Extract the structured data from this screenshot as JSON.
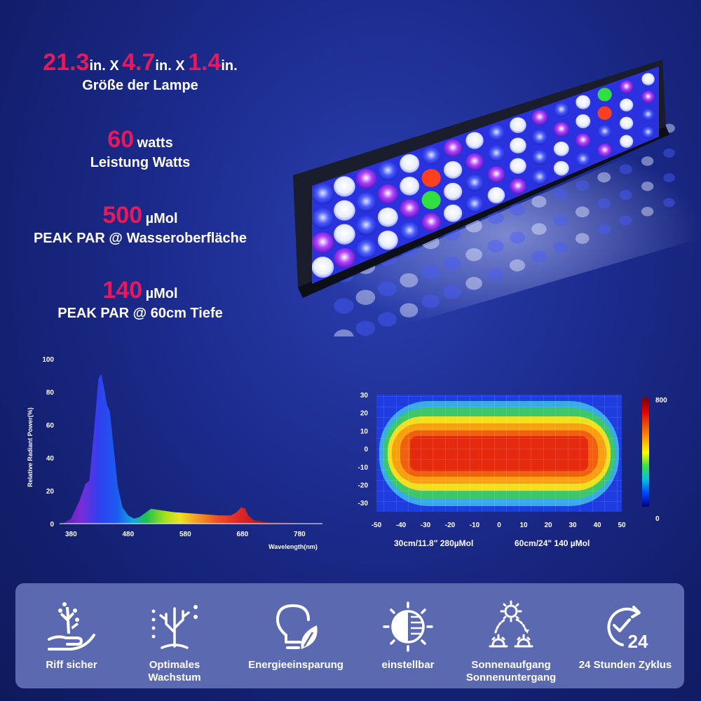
{
  "specs": {
    "size": {
      "v1": "21.3",
      "u1": "in. X",
      "v2": "4.7",
      "u2": "in. X",
      "v3": "1.4",
      "u3": "in.",
      "label": "Größe der Lampe"
    },
    "power": {
      "value": "60",
      "unit": "watts",
      "label": "Leistung Watts"
    },
    "par_surface": {
      "value": "500",
      "unit": "µMol",
      "label": "PEAK PAR @ Wasseroberfläche"
    },
    "par_depth": {
      "value": "140",
      "unit": "µMol",
      "label": "PEAK PAR @ 60cm Tiefe"
    }
  },
  "chart_data": [
    {
      "type": "area",
      "xlabel": "Wavelength(nm)",
      "ylabel": "Relative Radiant Power(%)",
      "xlim": [
        360,
        820
      ],
      "ylim": [
        0,
        100
      ],
      "x_ticks": [
        380,
        480,
        580,
        680,
        780
      ],
      "y_ticks": [
        0,
        20,
        40,
        60,
        80,
        100
      ],
      "series": [
        {
          "x": [
            365,
            380,
            395,
            405,
            412,
            420,
            428,
            433,
            438,
            443,
            448,
            455,
            462,
            470,
            480,
            490,
            500,
            520,
            540,
            560,
            580,
            600,
            620,
            640,
            660,
            670,
            678,
            685,
            690,
            700,
            720,
            760,
            800
          ],
          "values": [
            0,
            3,
            14,
            24,
            26,
            55,
            88,
            91,
            82,
            72,
            68,
            45,
            22,
            10,
            5,
            3,
            4,
            9,
            8,
            7,
            6.5,
            6,
            5.5,
            5,
            5,
            7,
            10,
            9,
            5,
            2,
            1,
            0.5,
            0
          ]
        }
      ]
    },
    {
      "type": "heatmap",
      "xlim": [
        -50,
        50
      ],
      "ylim": [
        -35,
        30
      ],
      "x_ticks": [
        -50,
        -40,
        -30,
        -20,
        -10,
        0,
        10,
        20,
        30,
        40,
        50
      ],
      "y_ticks": [
        30,
        20,
        10,
        0,
        -10,
        -20,
        -30
      ],
      "colorbar": {
        "min": "0",
        "max": "800"
      }
    }
  ],
  "par_notes": {
    "near": "30cm/11.8\"   280µMol",
    "far": "60cm/24\"   140 µMol"
  },
  "features": [
    {
      "icon": "coral-hand-icon",
      "label": "Riff sicher"
    },
    {
      "icon": "coral-growth-icon",
      "label": "Optimales Wachstum"
    },
    {
      "icon": "bulb-leaf-icon",
      "label": "Energieeinsparung"
    },
    {
      "icon": "dimmer-icon",
      "label": "einstellbar"
    },
    {
      "icon": "sunrise-sunset-icon",
      "label": "Sonnenaufgang",
      "label2": "Sonnenuntergang"
    },
    {
      "icon": "clock-24-icon",
      "label": "24 Stunden Zyklus",
      "badge": "24"
    }
  ]
}
